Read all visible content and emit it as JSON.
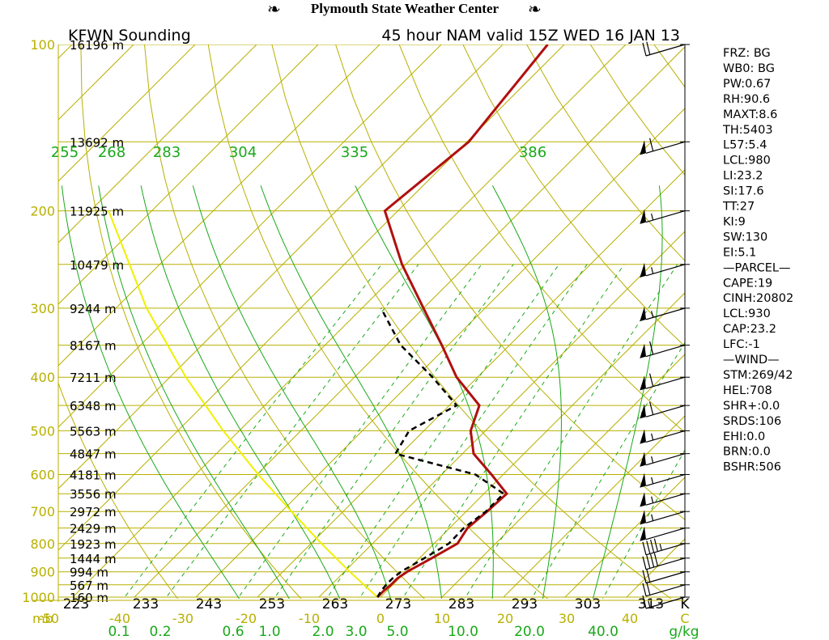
{
  "header": {
    "center_title": "Plymouth State Weather Center",
    "left_title": "KFWN Sounding",
    "right_title": "45 hour NAM valid 15Z WED 16 JAN 13"
  },
  "chart_data": {
    "type": "skew-t log-p",
    "pressure_levels_mb": [
      100,
      200,
      300,
      400,
      500,
      600,
      700,
      800,
      900,
      1000
    ],
    "height_labels": [
      {
        "p": 100,
        "text": "16196 m"
      },
      {
        "p": 150,
        "text": "13692 m"
      },
      {
        "p": 200,
        "text": "11925 m"
      },
      {
        "p": 250,
        "text": "10479 m"
      },
      {
        "p": 300,
        "text": "9244 m"
      },
      {
        "p": 350,
        "text": "8167 m"
      },
      {
        "p": 400,
        "text": "7211 m"
      },
      {
        "p": 450,
        "text": "6348 m"
      },
      {
        "p": 500,
        "text": "5563 m"
      },
      {
        "p": 550,
        "text": "4847 m"
      },
      {
        "p": 600,
        "text": "4181 m"
      },
      {
        "p": 650,
        "text": "3556 m"
      },
      {
        "p": 700,
        "text": "2972 m"
      },
      {
        "p": 750,
        "text": "2429 m"
      },
      {
        "p": 800,
        "text": "1923 m"
      },
      {
        "p": 850,
        "text": "1444 m"
      },
      {
        "p": 900,
        "text": "994 m"
      },
      {
        "p": 950,
        "text": "567 m"
      },
      {
        "p": 1000,
        "text": "160 m"
      }
    ],
    "celsius_ticks": [
      "-50",
      "-40",
      "-30",
      "-20",
      "-10",
      "0",
      "10",
      "20",
      "30",
      "40",
      "C"
    ],
    "celsius_prefix": "mb",
    "kelvin_ticks": [
      "223",
      "233",
      "243",
      "253",
      "263",
      "273",
      "283",
      "293",
      "303",
      "313",
      "K"
    ],
    "mixing_ratio_ticks": [
      "0.1",
      "0.2",
      "0.6",
      "1.0",
      "2.0",
      "3.0",
      "5.0",
      "10.0",
      "20.0",
      "40.0",
      "g/kg"
    ],
    "theta_labels": [
      "255",
      "268",
      "283",
      "304",
      "335",
      "386"
    ],
    "temperature_profile": [
      {
        "p": 1000,
        "t": -0.5
      },
      {
        "p": 975,
        "t": -0.5
      },
      {
        "p": 950,
        "t": -0.3
      },
      {
        "p": 925,
        "t": -0.3
      },
      {
        "p": 900,
        "t": 0.2
      },
      {
        "p": 850,
        "t": 2.0
      },
      {
        "p": 800,
        "t": 3.8
      },
      {
        "p": 750,
        "t": 2.9
      },
      {
        "p": 700,
        "t": 3.4
      },
      {
        "p": 650,
        "t": 3.7
      },
      {
        "p": 600,
        "t": -1.9
      },
      {
        "p": 550,
        "t": -8.2
      },
      {
        "p": 500,
        "t": -12.4
      },
      {
        "p": 450,
        "t": -15.1
      },
      {
        "p": 400,
        "t": -23.4
      },
      {
        "p": 350,
        "t": -31.0
      },
      {
        "p": 300,
        "t": -40.0
      },
      {
        "p": 250,
        "t": -50.6
      },
      {
        "p": 200,
        "t": -62.1
      },
      {
        "p": 150,
        "t": -59.7
      },
      {
        "p": 100,
        "t": -62.7
      }
    ],
    "dewpoint_profile": [
      {
        "p": 1000,
        "t": -0.5
      },
      {
        "p": 975,
        "t": -0.9
      },
      {
        "p": 950,
        "t": -1.1
      },
      {
        "p": 925,
        "t": -1.1
      },
      {
        "p": 900,
        "t": -0.8
      },
      {
        "p": 850,
        "t": 0.8
      },
      {
        "p": 800,
        "t": 2.4
      },
      {
        "p": 750,
        "t": 2.3
      },
      {
        "p": 700,
        "t": 3.2
      },
      {
        "p": 650,
        "t": 3.2
      },
      {
        "p": 600,
        "t": -4.5
      },
      {
        "p": 550,
        "t": -20.9
      },
      {
        "p": 500,
        "t": -22.4
      },
      {
        "p": 450,
        "t": -18.8
      },
      {
        "p": 400,
        "t": -27.3
      },
      {
        "p": 350,
        "t": -37.7
      },
      {
        "p": 300,
        "t": -46.9
      }
    ],
    "parcel_path": [
      {
        "p": 1000,
        "t": -0.5
      },
      {
        "p": 900,
        "t": -9.1
      },
      {
        "p": 800,
        "t": -18.3
      },
      {
        "p": 700,
        "t": -28.4
      },
      {
        "p": 600,
        "t": -39.8
      },
      {
        "p": 500,
        "t": -52.6
      },
      {
        "p": 400,
        "t": -67.4
      },
      {
        "p": 300,
        "t": -85.0
      },
      {
        "p": 200,
        "t": -107.0
      }
    ],
    "wind_levels_mb": [
      100,
      150,
      200,
      250,
      300,
      350,
      400,
      450,
      500,
      550,
      600,
      650,
      700,
      750,
      800,
      850,
      900,
      950,
      1000
    ],
    "wind_barbs": [
      {
        "p": 100,
        "kt": 20
      },
      {
        "p": 150,
        "kt": 60
      },
      {
        "p": 200,
        "kt": 55
      },
      {
        "p": 250,
        "kt": 55
      },
      {
        "p": 300,
        "kt": 55
      },
      {
        "p": 350,
        "kt": 60
      },
      {
        "p": 400,
        "kt": 60
      },
      {
        "p": 450,
        "kt": 60
      },
      {
        "p": 500,
        "kt": 55
      },
      {
        "p": 550,
        "kt": 55
      },
      {
        "p": 600,
        "kt": 55
      },
      {
        "p": 650,
        "kt": 55
      },
      {
        "p": 700,
        "kt": 55
      },
      {
        "p": 750,
        "kt": 50
      },
      {
        "p": 800,
        "kt": 45
      },
      {
        "p": 850,
        "kt": 40
      },
      {
        "p": 900,
        "kt": 20
      },
      {
        "p": 950,
        "kt": 20
      },
      {
        "p": 1000,
        "kt": 15
      }
    ],
    "colors": {
      "isobar": "#b8b000",
      "isotherm": "#b8b000",
      "dry_adiabat": "#b8b000",
      "moist_adiabat": "#1aa81a",
      "mixing_ratio": "#1aa81a",
      "temperature": "#b01010",
      "dewpoint": "#000000",
      "parcel": "#f0f000"
    }
  },
  "indices": [
    "FRZ: BG",
    "WB0: BG",
    "PW:0.67",
    "RH:90.6",
    "MAXT:8.6",
    "TH:5403",
    "L57:5.4",
    "LCL:980",
    "LI:23.2",
    "SI:17.6",
    "TT:27",
    "KI:9",
    "SW:130",
    "EI:5.1",
    "—PARCEL—",
    "CAPE:19",
    "CINH:20802",
    "LCL:930",
    "CAP:23.2",
    "LFC:-1",
    "—WIND—",
    "STM:269/42",
    "HEL:708",
    "SHR+:0.0",
    "SRDS:106",
    "EHI:0.0",
    "BRN:0.0",
    "BSHR:506"
  ]
}
